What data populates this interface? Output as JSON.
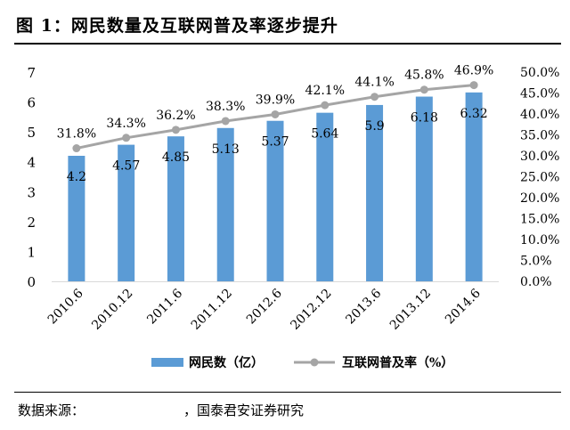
{
  "title": "图 1：网民数量及互联网普及率逐步提升",
  "footer": {
    "label": "数据来源：",
    "source": "，国泰君安证券研究"
  },
  "chart_data": {
    "type": "bar+line",
    "categories": [
      "2010.6",
      "2010.12",
      "2011.6",
      "2011.12",
      "2012.6",
      "2012.12",
      "2013.6",
      "2013.12",
      "2014.6"
    ],
    "series": [
      {
        "name": "网民数（亿）",
        "type": "bar",
        "axis": "left",
        "color": "#5b9bd5",
        "values": [
          4.2,
          4.57,
          4.85,
          5.13,
          5.37,
          5.64,
          5.9,
          6.18,
          6.32
        ],
        "labels": [
          "4.2",
          "4.57",
          "4.85",
          "5.13",
          "5.37",
          "5.64",
          "5.9",
          "6.18",
          "6.32"
        ]
      },
      {
        "name": "互联网普及率（%）",
        "type": "line",
        "axis": "right",
        "color": "#a5a5a5",
        "values": [
          31.8,
          34.3,
          36.2,
          38.3,
          39.9,
          42.1,
          44.1,
          45.8,
          46.9
        ],
        "labels": [
          "31.8%",
          "34.3%",
          "36.2%",
          "38.3%",
          "39.9%",
          "42.1%",
          "44.1%",
          "45.8%",
          "46.9%"
        ]
      }
    ],
    "y_left": {
      "min": 0,
      "max": 7,
      "step": 1,
      "ticks": [
        "0",
        "1",
        "2",
        "3",
        "4",
        "5",
        "6",
        "7"
      ]
    },
    "y_right": {
      "min": 0,
      "max": 50,
      "step": 5,
      "ticks": [
        "0.0%",
        "5.0%",
        "10.0%",
        "15.0%",
        "20.0%",
        "25.0%",
        "30.0%",
        "35.0%",
        "40.0%",
        "45.0%",
        "50.0%"
      ]
    },
    "legend_position": "bottom",
    "grid": false
  }
}
